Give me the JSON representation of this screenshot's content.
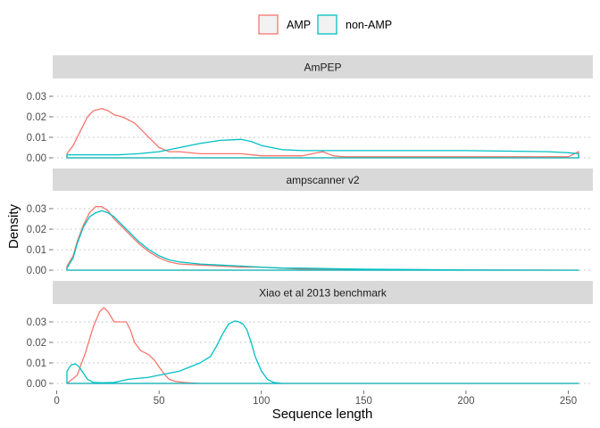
{
  "chart_data": {
    "type": "area",
    "xlabel": "Sequence length",
    "ylabel": "Density",
    "xlim": [
      -2,
      262
    ],
    "ylim": [
      0,
      0.037
    ],
    "x_ticks": [
      0,
      50,
      100,
      150,
      200,
      250
    ],
    "y_ticks": [
      0.0,
      0.01,
      0.02,
      0.03
    ],
    "y_tick_labels": [
      "0.00",
      "0.01",
      "0.02",
      "0.03"
    ],
    "grid": "dotted horizontal",
    "legend": {
      "placement": "top-center",
      "entries": [
        {
          "label": "AMP",
          "color": "#F8766D"
        },
        {
          "label": "non-AMP",
          "color": "#00BFC4"
        }
      ]
    },
    "panels": [
      {
        "title": "AmPEP",
        "series": [
          {
            "name": "AMP",
            "color": "#F8766D",
            "x": [
              5,
              8,
              12,
              15,
              18,
              22,
              25,
              28,
              32,
              38,
              42,
              46,
              50,
              55,
              60,
              70,
              80,
              90,
              100,
              110,
              120,
              125,
              130,
              135,
              140,
              150,
              200,
              250,
              253,
              255
            ],
            "y": [
              0.002,
              0.006,
              0.014,
              0.02,
              0.023,
              0.024,
              0.023,
              0.021,
              0.02,
              0.017,
              0.013,
              0.009,
              0.005,
              0.003,
              0.003,
              0.002,
              0.002,
              0.002,
              0.001,
              0.001,
              0.001,
              0.002,
              0.003,
              0.001,
              0.0005,
              0.0005,
              0.0005,
              0.0005,
              0.002,
              0.003
            ]
          },
          {
            "name": "non-AMP",
            "color": "#00BFC4",
            "x": [
              5,
              10,
              20,
              30,
              40,
              50,
              60,
              70,
              80,
              90,
              95,
              100,
              110,
              120,
              150,
              200,
              240,
              250,
              255
            ],
            "y": [
              0.0015,
              0.0015,
              0.0015,
              0.0015,
              0.002,
              0.003,
              0.005,
              0.007,
              0.0085,
              0.009,
              0.008,
              0.006,
              0.004,
              0.0035,
              0.0035,
              0.0035,
              0.003,
              0.0025,
              0.002
            ]
          }
        ]
      },
      {
        "title": "ampscanner v2",
        "series": [
          {
            "name": "AMP",
            "color": "#F8766D",
            "x": [
              5,
              8,
              10,
              13,
              16,
              19,
              22,
              25,
              28,
              32,
              36,
              40,
              45,
              50,
              55,
              60,
              70,
              80,
              90,
              100,
              110,
              120,
              130,
              150,
              200,
              255
            ],
            "y": [
              0.002,
              0.007,
              0.014,
              0.022,
              0.028,
              0.031,
              0.031,
              0.029,
              0.025,
              0.021,
              0.017,
              0.013,
              0.009,
              0.006,
              0.004,
              0.003,
              0.0025,
              0.002,
              0.0015,
              0.0015,
              0.001,
              0.0005,
              0.0005,
              0.0003,
              0.0001,
              0.0
            ]
          },
          {
            "name": "non-AMP",
            "color": "#00BFC4",
            "x": [
              5,
              8,
              10,
              13,
              16,
              19,
              22,
              25,
              28,
              32,
              36,
              40,
              45,
              50,
              55,
              60,
              70,
              80,
              90,
              100,
              110,
              120,
              130,
              150,
              200,
              255
            ],
            "y": [
              0.001,
              0.006,
              0.013,
              0.021,
              0.026,
              0.028,
              0.029,
              0.028,
              0.026,
              0.022,
              0.018,
              0.014,
              0.01,
              0.007,
              0.005,
              0.004,
              0.003,
              0.0025,
              0.002,
              0.0015,
              0.001,
              0.001,
              0.0008,
              0.0005,
              0.0001,
              0.0
            ]
          }
        ]
      },
      {
        "title": "Xiao et al 2013 benchmark",
        "series": [
          {
            "name": "AMP",
            "color": "#F8766D",
            "x": [
              5,
              10,
              14,
              18,
              21,
              23,
              25,
              28,
              31,
              34,
              36,
              38,
              41,
              45,
              48,
              50,
              53,
              55,
              58,
              62,
              66,
              70,
              80,
              90,
              100,
              255
            ],
            "y": [
              0.0,
              0.004,
              0.015,
              0.028,
              0.035,
              0.037,
              0.035,
              0.03,
              0.03,
              0.03,
              0.026,
              0.02,
              0.016,
              0.014,
              0.011,
              0.008,
              0.004,
              0.002,
              0.001,
              0.0005,
              0.0002,
              0.0,
              0.0,
              0.0,
              0.0,
              0.0
            ]
          },
          {
            "name": "non-AMP",
            "color": "#00BFC4",
            "x": [
              5,
              7,
              9,
              11,
              13,
              15,
              18,
              22,
              28,
              35,
              45,
              50,
              55,
              60,
              65,
              70,
              75,
              78,
              81,
              84,
              87,
              89,
              91,
              93,
              95,
              97,
              100,
              103,
              106,
              110,
              120,
              150,
              200,
              255
            ],
            "y": [
              0.006,
              0.009,
              0.0095,
              0.008,
              0.005,
              0.002,
              0.0005,
              0.0003,
              0.0005,
              0.002,
              0.003,
              0.004,
              0.005,
              0.006,
              0.008,
              0.01,
              0.013,
              0.018,
              0.024,
              0.029,
              0.0305,
              0.03,
              0.029,
              0.026,
              0.02,
              0.013,
              0.006,
              0.002,
              0.0005,
              0.0,
              0.0,
              0.0,
              0.0,
              0.0
            ]
          }
        ]
      }
    ]
  }
}
